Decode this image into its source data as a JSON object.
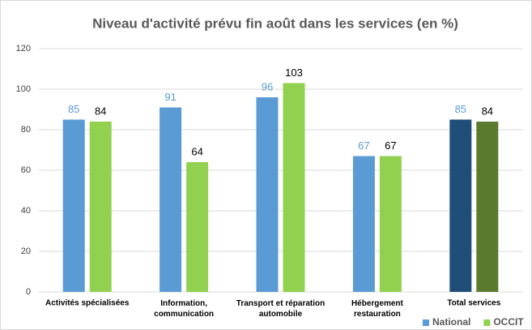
{
  "chart_data": {
    "type": "bar",
    "title": "Niveau d'activité prévu fin août dans les services (en %)",
    "categories": [
      "Activités spécialisées",
      "Information,\ncommunication",
      "Transport et réparation\nautomobile",
      "Hébergement\nrestauration",
      "Total services"
    ],
    "series": [
      {
        "name": "National",
        "color": "#5b9bd5",
        "colors": [
          "#5b9bd5",
          "#5b9bd5",
          "#5b9bd5",
          "#5b9bd5",
          "#1f4e79"
        ],
        "label_color": "#5b9bd5",
        "values": [
          85,
          91,
          96,
          67,
          85
        ]
      },
      {
        "name": "OCCIT",
        "color": "#92d050",
        "colors": [
          "#92d050",
          "#92d050",
          "#92d050",
          "#92d050",
          "#5a7a2e"
        ],
        "label_color": "#000000",
        "values": [
          84,
          64,
          103,
          67,
          84
        ]
      }
    ],
    "ylim": [
      0,
      120
    ],
    "yticks": [
      0,
      20,
      40,
      60,
      80,
      100,
      120
    ],
    "grid": true,
    "legend": "bottom-right"
  }
}
